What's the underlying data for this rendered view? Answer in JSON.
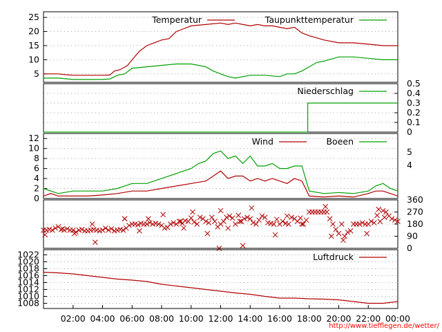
{
  "source_text": "http://www.tiefflegen.de/wetter/",
  "colors": {
    "red": "#b00000",
    "green": "#00a000",
    "axis": "#000000",
    "grid": "#a0a0a0"
  },
  "x_ticks": [
    "02:00",
    "04:00",
    "06:00",
    "08:00",
    "10:00",
    "12:00",
    "14:00",
    "16:00",
    "18:00",
    "20:00",
    "22:00",
    "00:00"
  ],
  "chart_data": [
    {
      "type": "line",
      "x_unit": "hour",
      "x_range": [
        0,
        24
      ],
      "ylim": [
        2,
        27
      ],
      "y_ticks": [
        5,
        10,
        15,
        20,
        25
      ],
      "legend_position": "top-right",
      "series": [
        {
          "name": "Temperatur",
          "color": "#b00000",
          "x": [
            0,
            1,
            1.5,
            2,
            3,
            4,
            4.5,
            4.8,
            5.2,
            5.7,
            6,
            6.5,
            7,
            7.5,
            8,
            8.5,
            9,
            9.5,
            10,
            11,
            12,
            12.5,
            13,
            13.5,
            14,
            14.5,
            15,
            15.5,
            16,
            16.5,
            17,
            17.5,
            18,
            19,
            20,
            21,
            22,
            23,
            24
          ],
          "values": [
            5,
            5,
            4.7,
            4.5,
            4.5,
            4.5,
            4.6,
            6,
            6.5,
            8,
            10,
            13,
            15,
            16,
            17,
            17.5,
            20,
            21,
            22,
            22.5,
            23,
            22.5,
            23,
            22.5,
            22,
            22.5,
            22,
            22,
            21.5,
            21,
            21.5,
            19.5,
            18.5,
            17,
            16,
            16,
            15.5,
            15,
            15
          ]
        },
        {
          "name": "Taupunkttemperatur",
          "color": "#00a000",
          "x": [
            0,
            1,
            2,
            3,
            4,
            4.5,
            5,
            5.5,
            6,
            7,
            8,
            9,
            10,
            10.5,
            11,
            11.5,
            12,
            12.5,
            13,
            14,
            15,
            16,
            16.5,
            17,
            17.5,
            18,
            18.5,
            19,
            20,
            21,
            22,
            23,
            24
          ],
          "values": [
            3.5,
            3.5,
            3,
            3,
            3,
            3.2,
            4.5,
            5,
            7,
            7.5,
            8,
            8.5,
            8.5,
            8,
            7.5,
            6,
            5,
            4,
            3.5,
            4.5,
            4.5,
            4,
            5,
            5,
            6,
            7.5,
            9,
            9.5,
            11,
            11,
            10.5,
            10,
            10
          ]
        }
      ]
    },
    {
      "type": "line",
      "x_unit": "hour",
      "x_range": [
        0,
        24
      ],
      "ylim": [
        0,
        0.5
      ],
      "y_ticks": [
        0,
        0.1,
        0.2,
        0.3,
        0.4,
        0.5
      ],
      "y_axis_side": "right",
      "legend_position": "top-right",
      "series": [
        {
          "name": "Niederschlag",
          "color": "#00a000",
          "x": [
            0,
            17.9,
            17.9,
            24
          ],
          "values": [
            0,
            0,
            0.3,
            0.3
          ]
        }
      ]
    },
    {
      "type": "line",
      "x_unit": "hour",
      "x_range": [
        0,
        24
      ],
      "ylim": [
        0,
        13
      ],
      "y_ticks": [
        0,
        2,
        4,
        6,
        8,
        10,
        12
      ],
      "right_y_ticks": [
        "4",
        "5"
      ],
      "legend_position": "top-right",
      "series": [
        {
          "name": "Wind",
          "color": "#b00000",
          "x": [
            0,
            0.5,
            1,
            2,
            3,
            4,
            5,
            6,
            7,
            8,
            9,
            10,
            11,
            11.5,
            12,
            12.5,
            13,
            13.5,
            14,
            14.5,
            15,
            15.5,
            16,
            16.5,
            17,
            17.5,
            18,
            19,
            20,
            21,
            22,
            22.5,
            23,
            23.5,
            24
          ],
          "values": [
            0.5,
            1,
            0.5,
            0.5,
            0.5,
            0.7,
            1,
            1.5,
            1.5,
            2,
            2.5,
            3,
            3.5,
            4.5,
            5.5,
            4,
            4.5,
            4.5,
            3.5,
            4,
            3.5,
            4,
            3.5,
            3,
            4,
            3.5,
            0.5,
            0.3,
            0.5,
            0.3,
            1,
            1.5,
            1.5,
            1,
            0.5
          ]
        },
        {
          "name": "Boeen",
          "color": "#00a000",
          "x": [
            0,
            0.5,
            1,
            2,
            3,
            4,
            5,
            6,
            7,
            8,
            9,
            10,
            10.5,
            11,
            11.5,
            12,
            12.5,
            13,
            13.5,
            14,
            14.5,
            15,
            15.5,
            16,
            16.5,
            17,
            17.5,
            18,
            19,
            20,
            21,
            22,
            22.5,
            23,
            23.5,
            24
          ],
          "values": [
            2,
            1.5,
            1,
            1.5,
            1.5,
            1.5,
            2,
            3,
            3,
            4,
            5,
            6,
            7,
            7.5,
            9,
            9.5,
            8,
            8.5,
            7,
            8.5,
            6.5,
            6.5,
            7,
            6,
            6,
            6.5,
            6.5,
            1.5,
            1,
            1.2,
            1,
            1.5,
            2.5,
            3,
            2,
            1.5
          ]
        }
      ]
    },
    {
      "type": "scatter",
      "x_unit": "hour",
      "x_range": [
        0,
        24
      ],
      "ylim": [
        0,
        360
      ],
      "y_ticks": [
        0,
        90,
        180,
        270,
        360
      ],
      "y_axis_side": "right",
      "marker": "x",
      "color": "#b00000",
      "x": [
        0,
        0.2,
        0.4,
        0.6,
        0.8,
        1,
        1.2,
        1.4,
        1.6,
        1.8,
        2,
        2.2,
        2.4,
        2.6,
        2.8,
        3,
        3.2,
        3.4,
        3.6,
        3.8,
        4,
        4.2,
        4.4,
        4.6,
        4.8,
        5,
        5.2,
        5.4,
        5.6,
        5.8,
        6,
        6.2,
        6.4,
        6.6,
        6.8,
        7,
        7.2,
        7.4,
        7.6,
        7.8,
        8,
        8.2,
        8.4,
        8.6,
        8.8,
        9,
        9.2,
        9.4,
        9.6,
        9.8,
        10,
        10.2,
        10.4,
        10.6,
        10.8,
        11,
        11.2,
        11.4,
        11.6,
        11.8,
        12,
        12.2,
        12.4,
        12.6,
        12.8,
        13,
        13.2,
        13.4,
        13.6,
        13.8,
        14,
        14.2,
        14.4,
        14.6,
        14.8,
        15,
        15.2,
        15.4,
        15.6,
        15.8,
        16,
        16.2,
        16.4,
        16.6,
        16.8,
        17,
        17.2,
        17.4,
        17.6,
        17.8,
        18,
        18.2,
        18.4,
        18.6,
        18.8,
        19,
        19.2,
        19.4,
        19.6,
        19.8,
        20,
        20.2,
        20.4,
        20.6,
        20.8,
        21,
        21.2,
        21.4,
        21.6,
        21.8,
        22,
        22.2,
        22.4,
        22.6,
        22.8,
        23,
        23.2,
        23.4,
        23.6,
        23.8,
        24,
        0.1,
        1.3,
        2.1,
        3.3,
        3.5,
        5.5,
        5.5,
        6.5,
        7.1,
        8.1,
        9.3,
        9.5,
        10.1,
        11.1,
        11.9,
        12,
        12.5,
        13.5,
        13.3,
        14.1,
        15.7,
        16.5,
        17.5,
        19.1,
        19.5,
        20.3,
        21.9,
        22.7,
        23.1
      ],
      "values": [
        135,
        135,
        140,
        135,
        150,
        160,
        140,
        135,
        145,
        135,
        135,
        120,
        135,
        140,
        130,
        130,
        135,
        140,
        135,
        130,
        135,
        150,
        135,
        145,
        130,
        135,
        140,
        135,
        150,
        170,
        180,
        180,
        175,
        185,
        180,
        180,
        190,
        180,
        185,
        180,
        170,
        150,
        155,
        180,
        190,
        180,
        200,
        185,
        205,
        200,
        225,
        195,
        180,
        230,
        220,
        200,
        190,
        230,
        200,
        160,
        180,
        200,
        230,
        240,
        225,
        180,
        245,
        200,
        220,
        230,
        220,
        190,
        180,
        210,
        240,
        230,
        190,
        185,
        180,
        215,
        180,
        200,
        185,
        180,
        230,
        220,
        200,
        225,
        180,
        210,
        270,
        270,
        270,
        270,
        270,
        270,
        270,
        220,
        180,
        140,
        110,
        180,
        90,
        120,
        130,
        180,
        180,
        180,
        190,
        180,
        180,
        200,
        190,
        245,
        200,
        280,
        270,
        240,
        220,
        210,
        200,
        100,
        145,
        110,
        180,
        45,
        220,
        220,
        130,
        220,
        250,
        200,
        150,
        270,
        110,
        0,
        280,
        150,
        20,
        200,
        300,
        100,
        240,
        180,
        310,
        90,
        60,
        110,
        290,
        230
      ]
    },
    {
      "type": "line",
      "x_unit": "hour",
      "x_range": [
        0,
        24
      ],
      "ylim": [
        1006.5,
        1023.5
      ],
      "y_ticks": [
        1008,
        1010,
        1012,
        1014,
        1016,
        1018,
        1020,
        1022
      ],
      "legend_position": "top-right",
      "series": [
        {
          "name": "Luftdruck",
          "color": "#b00000",
          "x": [
            0,
            1,
            2,
            3,
            4,
            5,
            6,
            7,
            8,
            9,
            10,
            11,
            12,
            13,
            14,
            15,
            16,
            17,
            18,
            19,
            20,
            21,
            22,
            23,
            24
          ],
          "values": [
            1017,
            1016.8,
            1016.5,
            1016,
            1015.5,
            1015,
            1014.7,
            1014.3,
            1013.5,
            1013,
            1012.5,
            1012,
            1011.5,
            1011,
            1010.6,
            1010,
            1009.5,
            1009.5,
            1009.3,
            1009.2,
            1009,
            1008.5,
            1008,
            1008,
            1008.5
          ]
        }
      ]
    }
  ]
}
